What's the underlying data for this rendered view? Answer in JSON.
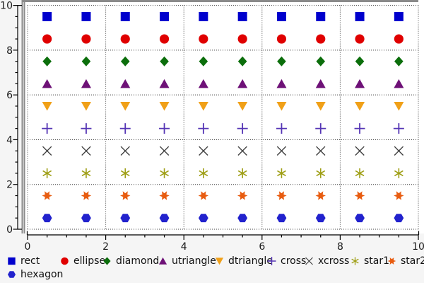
{
  "chart_data": {
    "type": "scatter",
    "title": "",
    "xlabel": "",
    "ylabel": "",
    "xlim": [
      0,
      10
    ],
    "ylim": [
      0,
      10
    ],
    "x_major_ticks": [
      0,
      2,
      4,
      6,
      8,
      10
    ],
    "y_major_ticks": [
      0,
      2,
      4,
      6,
      8,
      10
    ],
    "x_tick_labels": [
      "0",
      "2",
      "4",
      "6",
      "8",
      "10"
    ],
    "y_tick_labels": [
      "0",
      "2",
      "4",
      "6",
      "8",
      "10"
    ],
    "minor_tick_step": 0.5,
    "grid": true,
    "grid_style": "dotted",
    "legend_position": "bottom",
    "x_values": [
      0.5,
      1.5,
      2.5,
      3.5,
      4.5,
      5.5,
      6.5,
      7.5,
      8.5,
      9.5
    ],
    "series": [
      {
        "name": "rect",
        "shape": "rect",
        "color": "#0000cd",
        "y": 9.5
      },
      {
        "name": "ellipse",
        "shape": "ellipse",
        "color": "#e00000",
        "y": 8.5
      },
      {
        "name": "diamond",
        "shape": "diamond",
        "color": "#0b6e0b",
        "y": 7.5
      },
      {
        "name": "utriangle",
        "shape": "utriangle",
        "color": "#6e1177",
        "y": 6.5
      },
      {
        "name": "dtriangle",
        "shape": "dtriangle",
        "color": "#f0a018",
        "y": 5.5
      },
      {
        "name": "cross",
        "shape": "cross",
        "color": "#5535b5",
        "y": 4.5
      },
      {
        "name": "xcross",
        "shape": "xcross",
        "color": "#3d3d3d",
        "y": 3.5
      },
      {
        "name": "star1",
        "shape": "star1",
        "color": "#9e9e14",
        "y": 2.5
      },
      {
        "name": "star2",
        "shape": "star2",
        "color": "#e85c10",
        "y": 1.5
      },
      {
        "name": "hexagon",
        "shape": "hexagon",
        "color": "#2222cd",
        "y": 0.5
      }
    ]
  }
}
